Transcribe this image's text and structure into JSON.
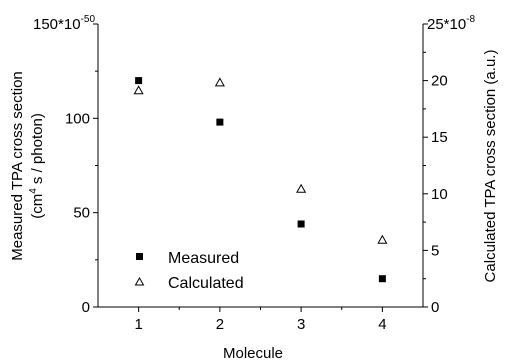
{
  "chart_data": {
    "type": "scatter",
    "x": [
      1,
      2,
      3,
      4
    ],
    "xlabel": "Molecule",
    "xticks": [
      "1",
      "2",
      "3",
      "4"
    ],
    "xlim": [
      0.5,
      4.5
    ],
    "left_axis": {
      "label_line1": "Measured TPA cross section",
      "label_line2_pre": "(cm",
      "label_line2_sup": "4",
      "label_line2_post": " s / photon)",
      "ylim": [
        0,
        150
      ],
      "ticks": [
        0,
        50,
        100,
        150
      ],
      "tick_labels": [
        "0",
        "50",
        "100",
        ""
      ],
      "top_label_base": "150*10",
      "top_label_exp": "-50"
    },
    "right_axis": {
      "label": "Calculated TPA cross section (a.u.)",
      "ylim": [
        0,
        25
      ],
      "ticks": [
        0,
        5,
        10,
        15,
        20,
        25
      ],
      "tick_labels": [
        "0",
        "5",
        "10",
        "15",
        "20",
        ""
      ],
      "top_label_base": "25*10",
      "top_label_exp": "-8"
    },
    "series": [
      {
        "name": "Measured",
        "axis": "left",
        "marker": "filled-square",
        "values": [
          120,
          98,
          44,
          15
        ]
      },
      {
        "name": "Calculated",
        "axis": "right",
        "marker": "open-triangle",
        "values": [
          19.1,
          19.8,
          10.4,
          5.9
        ]
      }
    ],
    "legend": "bottom-left"
  }
}
